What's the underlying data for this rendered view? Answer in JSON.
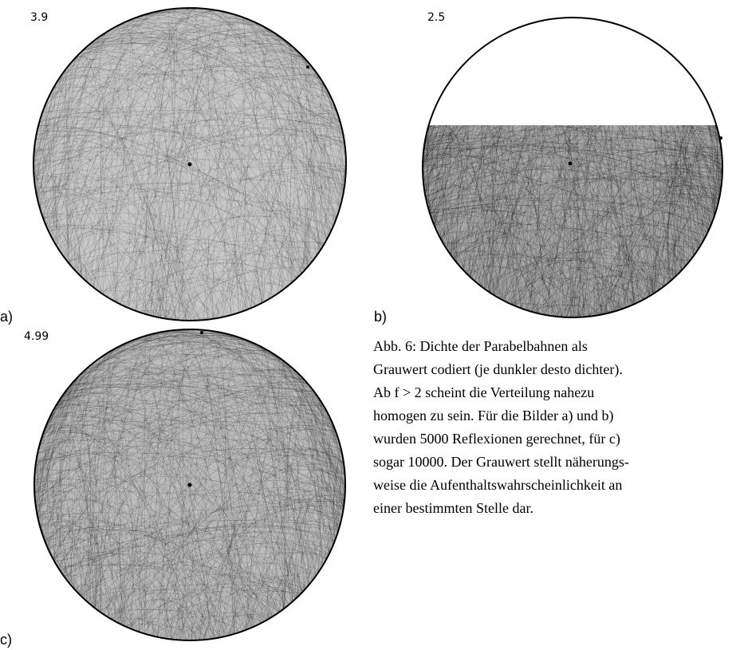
{
  "panels": [
    {
      "value_label": "3.9",
      "letter": "a)"
    },
    {
      "value_label": "2.5",
      "letter": "b)"
    },
    {
      "value_label": "4.99",
      "letter": "c)"
    }
  ],
  "caption": {
    "lines": [
      "Abb. 6: Dichte der Parabelbahnen als",
      "Grauwert codiert (je dunkler desto dichter).",
      "Ab f > 2 scheint die Verteilung nahezu",
      "homogen zu sein. Für die Bilder a) und b)",
      "wurden 5000 Reflexionen gerechnet,  für c)",
      "sogar 10000. Der Grauwert stellt näherungs-",
      "weise die Aufenthaltswahrscheinlichkeit an",
      "einer bestimmten Stelle dar."
    ]
  }
}
